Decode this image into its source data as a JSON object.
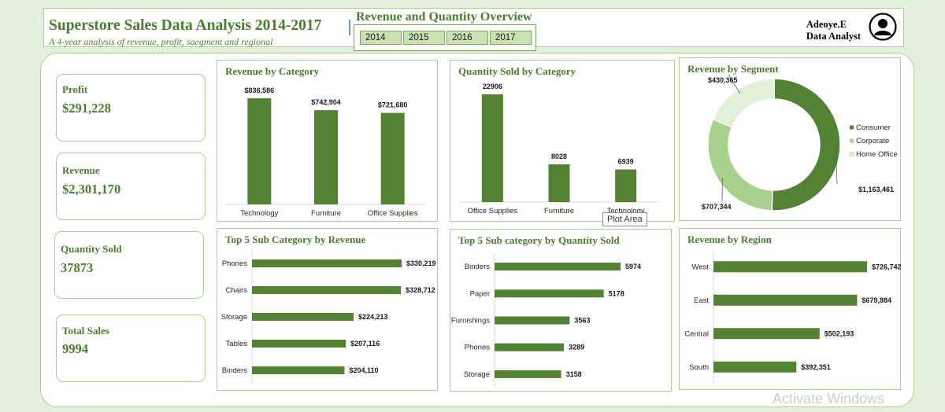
{
  "header": {
    "title": "Superstore Sales Data Analysis 2014-2017",
    "subtitle": "A 4-year analysis of revenue, profit, saegment and regional",
    "overview_title": "Revenue and Quantity Overview",
    "years": [
      "2014",
      "2015",
      "2016",
      "2017"
    ],
    "author_name": "Adeoye.E",
    "author_role": "Data Analyst",
    "avatar_icon": "user-circle-icon"
  },
  "kpis": [
    {
      "label": "Profit",
      "value": "$291,228"
    },
    {
      "label": "Revenue",
      "value": "$2,301,170"
    },
    {
      "label": "Quantity Sold",
      "value": "37873"
    },
    {
      "label": "Total Sales",
      "value": "9994"
    }
  ],
  "tooltip": "Plot Area",
  "watermark": "Activate Windows",
  "colors": {
    "bar": "#548235",
    "accent": "#4a7d2e",
    "corporate": "#a9d18e",
    "home_office": "#e2efd9"
  },
  "chart_data": [
    {
      "id": "revenue-by-category",
      "type": "bar",
      "title": "Revenue by Category",
      "categories": [
        "Technology",
        "Furniture",
        "Office Supplies"
      ],
      "values": [
        836586,
        742904,
        721680
      ],
      "labels": [
        "$836,586",
        "$742,904",
        "$721,680"
      ]
    },
    {
      "id": "quantity-by-category",
      "type": "bar",
      "title": "Quantity Sold by Category",
      "categories": [
        "Office Supplies",
        "Furniture",
        "Technology"
      ],
      "values": [
        22906,
        8028,
        6939
      ],
      "labels": [
        "22906",
        "8028",
        "6939"
      ]
    },
    {
      "id": "revenue-by-segment",
      "type": "pie",
      "title": "Revenue by Segment",
      "categories": [
        "Consumer",
        "Corporate",
        "Home Office"
      ],
      "values": [
        1163461,
        707344,
        430365
      ],
      "labels": [
        "$1,163,461",
        "$707,344",
        "$430,365"
      ]
    },
    {
      "id": "top5-subcat-revenue",
      "type": "bar",
      "orientation": "horizontal",
      "title": "Top 5 Sub Category by Revenue",
      "categories": [
        "Phones",
        "Chairs",
        "Storage",
        "Tables",
        "Binders"
      ],
      "values": [
        330219,
        328712,
        224213,
        207116,
        204110
      ],
      "labels": [
        "$330,219",
        "$328,712",
        "$224,213",
        "$207,116",
        "$204,110"
      ]
    },
    {
      "id": "top5-subcat-quantity",
      "type": "bar",
      "orientation": "horizontal",
      "title": "Top 5 Sub category by Quantity Sold",
      "categories": [
        "Binders",
        "Paper",
        "Furnishings",
        "Phones",
        "Storage"
      ],
      "values": [
        5974,
        5178,
        3563,
        3289,
        3158
      ],
      "labels": [
        "5974",
        "5178",
        "3563",
        "3289",
        "3158"
      ]
    },
    {
      "id": "revenue-by-region",
      "type": "bar",
      "orientation": "horizontal",
      "title": "Revenue by Region",
      "categories": [
        "West",
        "East",
        "Central",
        "South"
      ],
      "values": [
        726742,
        679884,
        502193,
        392351
      ],
      "labels": [
        "$726,742",
        "$679,884",
        "$502,193",
        "$392,351"
      ]
    }
  ]
}
